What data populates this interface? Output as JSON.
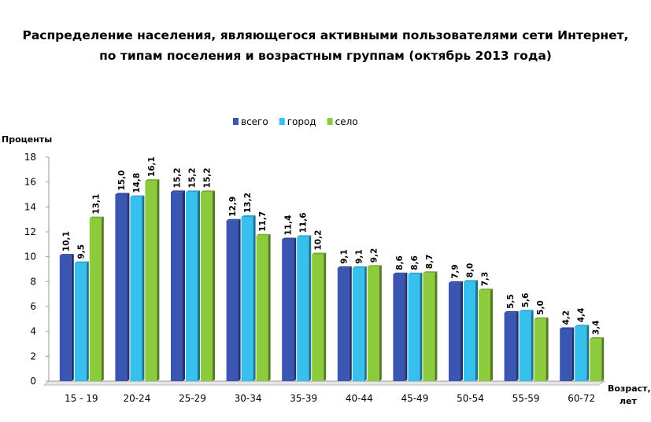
{
  "chart_data": {
    "type": "bar",
    "title": "Распределение населения, являющегося активными пользователями сети Интернет,",
    "subtitle": "по типам поселения и возрастным группам (октябрь 2013 года)",
    "ylabel": "Проценты",
    "xlabel_line1": "Возраст,",
    "xlabel_line2": "лет",
    "ylim": [
      0,
      18
    ],
    "yticks": [
      "0",
      "2",
      "4",
      "6",
      "8",
      "10",
      "12",
      "14",
      "16",
      "18"
    ],
    "legend_position": "top",
    "categories": [
      "15 - 19",
      "20-24",
      "25-29",
      "30-34",
      "35-39",
      "40-44",
      "45-49",
      "50-54",
      "55-59",
      "60-72"
    ],
    "series": [
      {
        "name": "всего",
        "color": "#3B55B3",
        "values": [
          10.1,
          15.0,
          15.2,
          12.9,
          11.4,
          9.1,
          8.6,
          7.9,
          5.5,
          4.2
        ],
        "labels": [
          "10,1",
          "15,0",
          "15,2",
          "12,9",
          "11,4",
          "9,1",
          "8,6",
          "7,9",
          "5,5",
          "4,2"
        ]
      },
      {
        "name": "город",
        "color": "#36C0EE",
        "values": [
          9.5,
          14.8,
          15.2,
          13.2,
          11.6,
          9.1,
          8.6,
          8.0,
          5.6,
          4.4
        ],
        "labels": [
          "9,5",
          "14,8",
          "15,2",
          "13,2",
          "11,6",
          "9,1",
          "8,6",
          "8,0",
          "5,6",
          "4,4"
        ]
      },
      {
        "name": "село",
        "color": "#8CCB3C",
        "values": [
          13.1,
          16.1,
          15.2,
          11.7,
          10.2,
          9.2,
          8.7,
          7.3,
          5.0,
          3.4
        ],
        "labels": [
          "13,1",
          "16,1",
          "15,2",
          "11,7",
          "10,2",
          "9,2",
          "8,7",
          "7,3",
          "5,0",
          "3,4"
        ]
      }
    ]
  }
}
